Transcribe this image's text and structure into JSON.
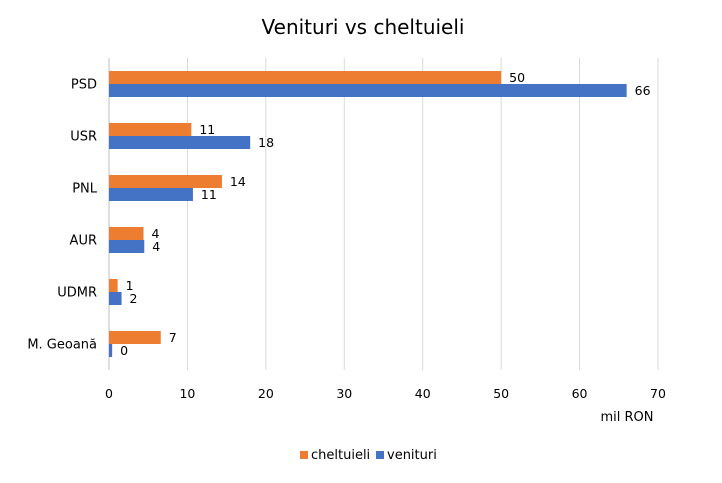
{
  "chart_data": {
    "type": "bar",
    "orientation": "horizontal",
    "title": "Venituri vs cheltuieli",
    "xlabel": "mil RON",
    "ylabel": "",
    "categories": [
      "PSD",
      "USR",
      "PNL",
      "AUR",
      "UDMR",
      "M. Geoană"
    ],
    "series": [
      {
        "name": "cheltuieli",
        "color": "#ED7D31",
        "values": [
          50,
          11,
          14,
          4,
          1,
          7
        ],
        "exact_values": [
          50,
          10.5,
          14.4,
          4.4,
          1.1,
          6.6
        ]
      },
      {
        "name": "venituri",
        "color": "#4472C4",
        "values": [
          66,
          18,
          11,
          4,
          2,
          0
        ],
        "exact_values": [
          66,
          18,
          10.7,
          4.5,
          1.6,
          0.4
        ]
      }
    ],
    "xlim": [
      0,
      70
    ],
    "xticks": [
      0,
      10,
      20,
      30,
      40,
      50,
      60,
      70
    ],
    "grid": true,
    "legend_position": "bottom"
  }
}
